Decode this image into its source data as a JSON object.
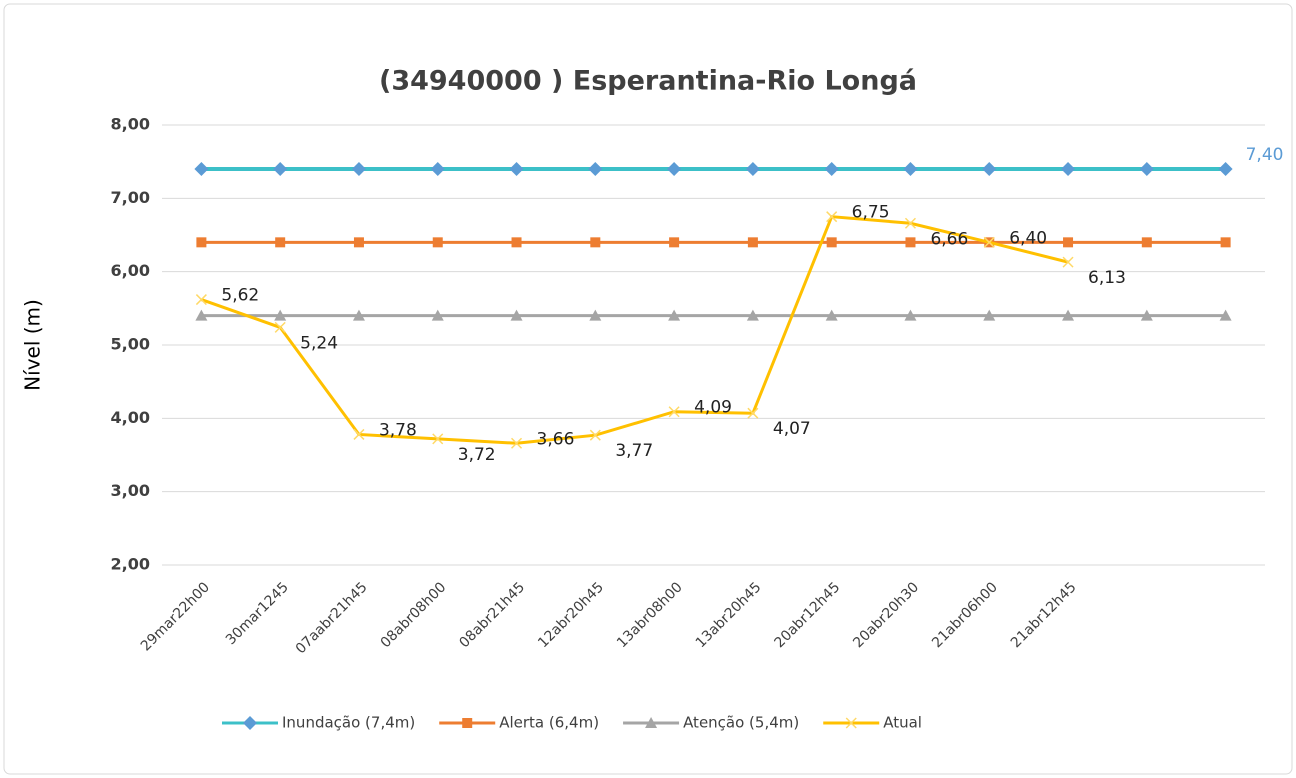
{
  "chart_data": {
    "type": "line",
    "title": "(34940000 ) Esperantina-Rio Longá",
    "y_label": "Nível (m)",
    "categories": [
      "29mar22h00",
      "30mar1245",
      "07aabr21h45",
      "08abr08h00",
      "08abr21h45",
      "12abr20h45",
      "13abr08h00",
      "13abr20h45",
      "20abr12h45",
      "20abr20h30",
      "21abr06h00",
      "21abr12h45",
      null,
      null
    ],
    "series": [
      {
        "name": "Inundação (7,4m)",
        "color": "#3cc0c8",
        "marker_color": "#5b9bd5",
        "marker": "diamond",
        "values": [
          7.4,
          7.4,
          7.4,
          7.4,
          7.4,
          7.4,
          7.4,
          7.4,
          7.4,
          7.4,
          7.4,
          7.4,
          7.4,
          7.4
        ],
        "value_labels": [
          null,
          null,
          null,
          null,
          null,
          null,
          null,
          null,
          null,
          null,
          null,
          null,
          null,
          "7,40"
        ],
        "label_color": "#5b9bd5"
      },
      {
        "name": "Alerta (6,4m)",
        "color": "#ed7d31",
        "marker_color": "#ed7d31",
        "marker": "square",
        "values": [
          6.4,
          6.4,
          6.4,
          6.4,
          6.4,
          6.4,
          6.4,
          6.4,
          6.4,
          6.4,
          6.4,
          6.4,
          6.4,
          6.4
        ]
      },
      {
        "name": "Atenção (5,4m)",
        "color": "#a5a5a5",
        "marker_color": "#a5a5a5",
        "marker": "triangle",
        "values": [
          5.4,
          5.4,
          5.4,
          5.4,
          5.4,
          5.4,
          5.4,
          5.4,
          5.4,
          5.4,
          5.4,
          5.4,
          5.4,
          5.4
        ]
      },
      {
        "name": "Atual",
        "color": "#ffc000",
        "marker_color": "#ffd966",
        "marker": "x",
        "values": [
          5.62,
          5.24,
          3.78,
          3.72,
          3.66,
          3.77,
          4.09,
          4.07,
          6.75,
          6.66,
          6.4,
          6.13,
          null,
          null
        ],
        "value_labels": [
          "5,62",
          "5,24",
          "3,78",
          "3,72",
          "3,66",
          "3,77",
          "4,09",
          "4,07",
          "6,75",
          "6,66",
          "6,40",
          "6,13",
          null,
          null
        ],
        "label_color": "#222"
      }
    ],
    "ylim": [
      2,
      8
    ],
    "yticks": [
      {
        "value": 2,
        "label": "2,00"
      },
      {
        "value": 3,
        "label": "3,00"
      },
      {
        "value": 4,
        "label": "4,00"
      },
      {
        "value": 5,
        "label": "5,00"
      },
      {
        "value": 6,
        "label": "6,00"
      },
      {
        "value": 7,
        "label": "7,00"
      },
      {
        "value": 8,
        "label": "8,00"
      }
    ],
    "grid": true,
    "legend": "bottom"
  }
}
